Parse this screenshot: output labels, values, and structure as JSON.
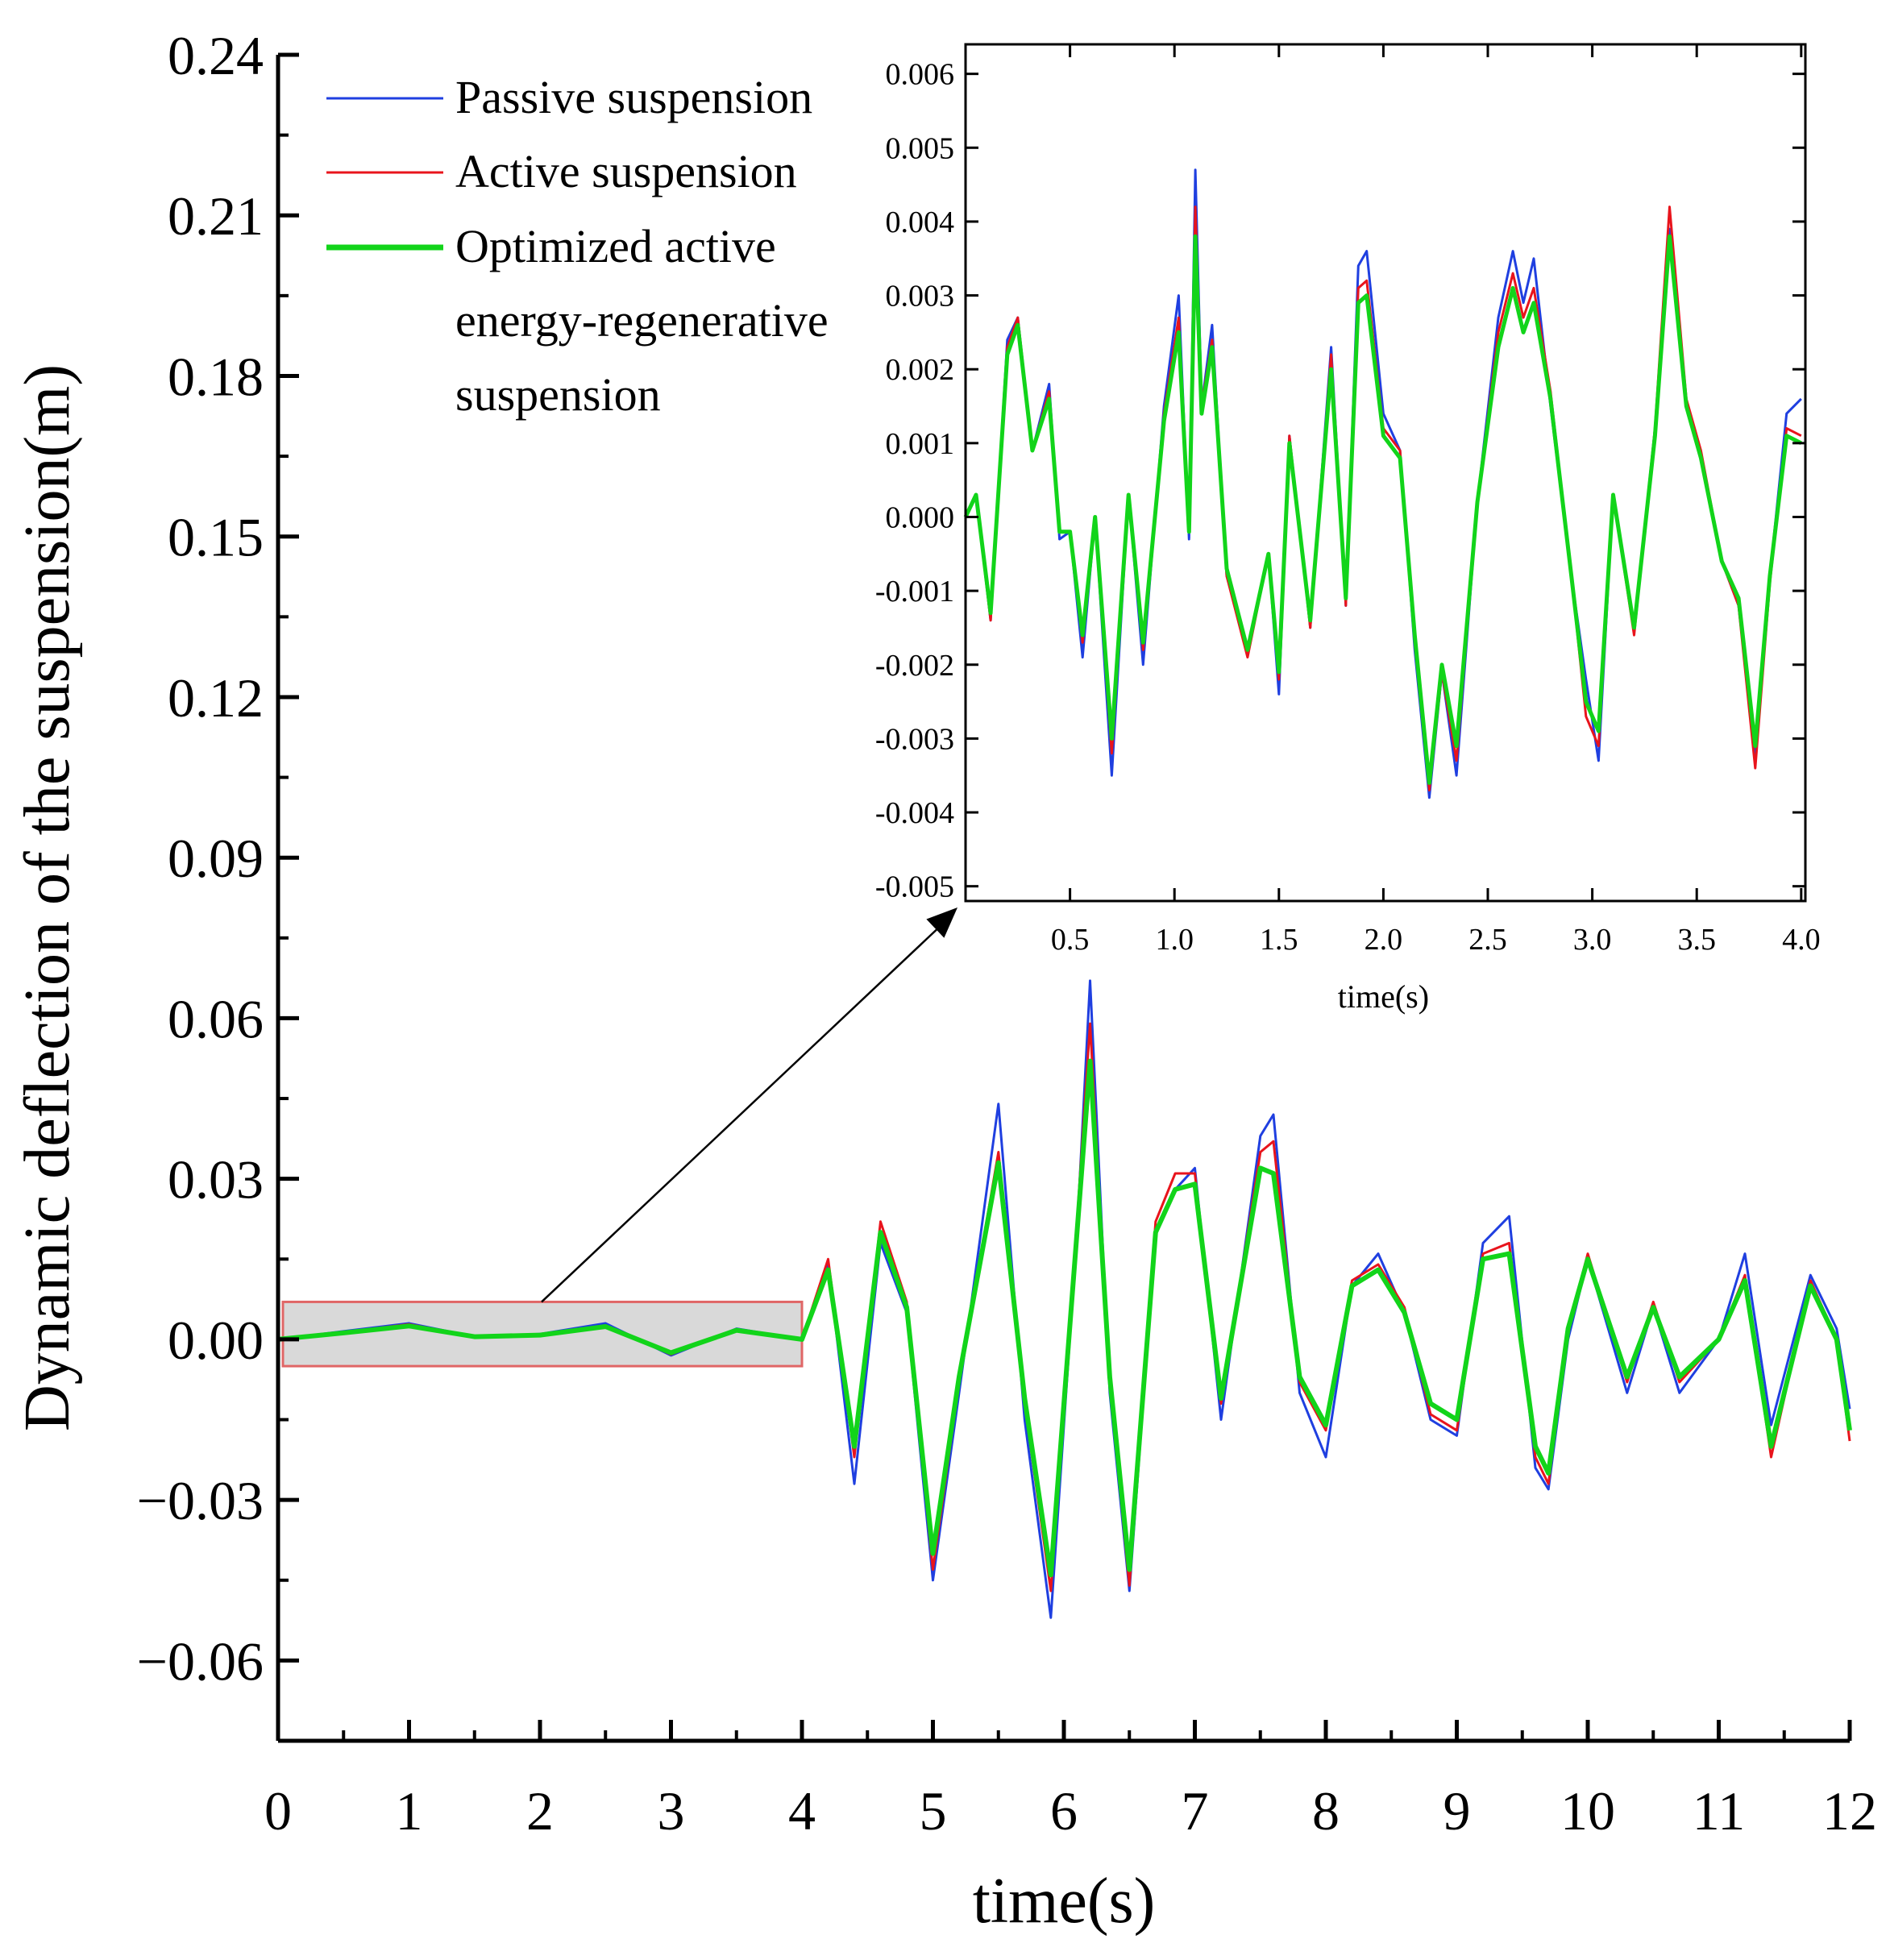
{
  "chart_data": [
    {
      "id": "main",
      "type": "line",
      "title": "",
      "xlabel": "time(s)",
      "ylabel": "Dynamic deflection of the suspension(m)",
      "xlim": [
        0,
        12
      ],
      "ylim": [
        -0.075,
        0.24
      ],
      "xticks": [
        0,
        1,
        2,
        3,
        4,
        5,
        6,
        7,
        8,
        9,
        10,
        11,
        12
      ],
      "xtick_labels": [
        "0",
        "1",
        "2",
        "3",
        "4",
        "5",
        "6",
        "7",
        "8",
        "9",
        "10",
        "11",
        "12"
      ],
      "yticks": [
        -0.06,
        -0.03,
        0.0,
        0.03,
        0.06,
        0.09,
        0.12,
        0.15,
        0.18,
        0.21,
        0.24
      ],
      "ytick_labels": [
        "−0.06",
        "−0.03",
        "0.00",
        "0.03",
        "0.06",
        "0.09",
        "0.12",
        "0.15",
        "0.18",
        "0.21",
        "0.24"
      ],
      "grid": false,
      "legend_position": "top-left",
      "highlight_region": {
        "x": [
          0,
          4
        ],
        "y": [
          -0.005,
          0.007
        ],
        "color": "#d9d9d9",
        "border": "#e06666"
      },
      "series": [
        {
          "name": "Passive suspension",
          "color": "#1f3fe0",
          "x": [
            0,
            0.5,
            1,
            1.5,
            2,
            2.5,
            3,
            3.5,
            4,
            4.2,
            4.4,
            4.6,
            4.8,
            5.0,
            5.2,
            5.5,
            5.7,
            5.9,
            6.1,
            6.2,
            6.35,
            6.5,
            6.7,
            6.85,
            7.0,
            7.2,
            7.5,
            7.6,
            7.8,
            8.0,
            8.2,
            8.4,
            8.6,
            8.8,
            9.0,
            9.2,
            9.4,
            9.6,
            9.7,
            9.85,
            10.0,
            10.3,
            10.5,
            10.7,
            11.0,
            11.2,
            11.4,
            11.7,
            11.9,
            12.0
          ],
          "y": [
            0.0,
            0.0015,
            0.003,
            0.0005,
            0.001,
            0.003,
            -0.003,
            0.002,
            0.0,
            0.014,
            -0.027,
            0.018,
            0.005,
            -0.045,
            -0.01,
            0.044,
            -0.015,
            -0.052,
            0.02,
            0.067,
            -0.01,
            -0.047,
            0.02,
            0.028,
            0.032,
            -0.015,
            0.038,
            0.042,
            -0.01,
            -0.022,
            0.01,
            0.016,
            0.005,
            -0.015,
            -0.018,
            0.018,
            0.023,
            -0.024,
            -0.028,
            0.0,
            0.015,
            -0.01,
            0.006,
            -0.01,
            0.0,
            0.016,
            -0.016,
            0.012,
            0.002,
            -0.013
          ]
        },
        {
          "name": "Active suspension",
          "color": "#e8141c",
          "x": [
            0,
            0.5,
            1,
            1.5,
            2,
            2.5,
            3,
            3.5,
            4,
            4.2,
            4.4,
            4.6,
            4.8,
            5.0,
            5.2,
            5.5,
            5.7,
            5.9,
            6.1,
            6.2,
            6.35,
            6.5,
            6.7,
            6.85,
            7.0,
            7.2,
            7.5,
            7.6,
            7.8,
            8.0,
            8.2,
            8.4,
            8.6,
            8.8,
            9.0,
            9.2,
            9.4,
            9.6,
            9.7,
            9.85,
            10.0,
            10.3,
            10.5,
            10.7,
            11.0,
            11.2,
            11.4,
            11.7,
            11.9,
            12.0
          ],
          "y": [
            0.0,
            0.0013,
            0.0028,
            0.0005,
            0.0009,
            0.0026,
            -0.0028,
            0.0019,
            0.0,
            0.015,
            -0.022,
            0.022,
            0.007,
            -0.043,
            -0.008,
            0.035,
            -0.012,
            -0.047,
            0.022,
            0.059,
            -0.008,
            -0.046,
            0.022,
            0.031,
            0.031,
            -0.012,
            0.035,
            0.037,
            -0.008,
            -0.017,
            0.011,
            0.014,
            0.006,
            -0.014,
            -0.017,
            0.016,
            0.018,
            -0.022,
            -0.027,
            0.002,
            0.016,
            -0.008,
            0.007,
            -0.008,
            0.0,
            0.012,
            -0.022,
            0.011,
            0.0,
            -0.019
          ]
        },
        {
          "name": "Optimized active energy-regenerative suspension",
          "color": "#12d41a",
          "x": [
            0,
            0.5,
            1,
            1.5,
            2,
            2.5,
            3,
            3.5,
            4,
            4.2,
            4.4,
            4.6,
            4.8,
            5.0,
            5.2,
            5.5,
            5.7,
            5.9,
            6.1,
            6.2,
            6.35,
            6.5,
            6.7,
            6.85,
            7.0,
            7.2,
            7.5,
            7.6,
            7.8,
            8.0,
            8.2,
            8.4,
            8.6,
            8.8,
            9.0,
            9.2,
            9.4,
            9.6,
            9.7,
            9.85,
            10.0,
            10.3,
            10.5,
            10.7,
            11.0,
            11.2,
            11.4,
            11.7,
            11.9,
            12.0
          ],
          "y": [
            0.0,
            0.0012,
            0.0025,
            0.0005,
            0.0008,
            0.0024,
            -0.0025,
            0.0017,
            0.0,
            0.013,
            -0.02,
            0.02,
            0.006,
            -0.04,
            -0.007,
            0.033,
            -0.011,
            -0.044,
            0.02,
            0.052,
            -0.007,
            -0.043,
            0.02,
            0.028,
            0.029,
            -0.011,
            0.032,
            0.031,
            -0.007,
            -0.016,
            0.01,
            0.013,
            0.005,
            -0.012,
            -0.015,
            0.015,
            0.016,
            -0.02,
            -0.025,
            0.002,
            0.015,
            -0.007,
            0.006,
            -0.007,
            0.0,
            0.011,
            -0.02,
            0.01,
            0.0,
            -0.017
          ]
        }
      ]
    },
    {
      "id": "inset",
      "type": "line",
      "title": "",
      "xlabel": "time(s)",
      "ylabel": "",
      "xlim": [
        0,
        4.02
      ],
      "ylim": [
        -0.0052,
        0.0064
      ],
      "xticks": [
        0.5,
        1.0,
        1.5,
        2.0,
        2.5,
        3.0,
        3.5,
        4.0
      ],
      "xtick_labels": [
        "0.5",
        "1.0",
        "1.5",
        "2.0",
        "2.5",
        "3.0",
        "3.5",
        "4.0"
      ],
      "yticks": [
        -0.005,
        -0.004,
        -0.003,
        -0.002,
        -0.001,
        0.0,
        0.001,
        0.002,
        0.003,
        0.004,
        0.005,
        0.006
      ],
      "ytick_labels": [
        "-0.005",
        "-0.004",
        "-0.003",
        "-0.002",
        "-0.001",
        "0.000",
        "0.001",
        "0.002",
        "0.003",
        "0.004",
        "0.005",
        "0.006"
      ],
      "grid": false,
      "series": [
        {
          "name": "Passive suspension",
          "color": "#1f3fe0",
          "x": [
            0.0,
            0.05,
            0.12,
            0.2,
            0.25,
            0.32,
            0.4,
            0.45,
            0.5,
            0.56,
            0.62,
            0.7,
            0.78,
            0.85,
            0.95,
            1.02,
            1.07,
            1.1,
            1.13,
            1.18,
            1.25,
            1.35,
            1.45,
            1.5,
            1.55,
            1.65,
            1.75,
            1.82,
            1.88,
            1.92,
            2.0,
            2.08,
            2.15,
            2.22,
            2.28,
            2.35,
            2.45,
            2.55,
            2.62,
            2.67,
            2.72,
            2.8,
            2.9,
            2.97,
            3.03,
            3.1,
            3.2,
            3.3,
            3.37,
            3.45,
            3.52,
            3.62,
            3.7,
            3.78,
            3.85,
            3.93,
            4.0
          ],
          "y": [
            0.0,
            0.0003,
            -0.0014,
            0.0024,
            0.0027,
            0.0009,
            0.0018,
            -0.0003,
            -0.0002,
            -0.0019,
            0.0,
            -0.0035,
            0.0003,
            -0.002,
            0.0015,
            0.003,
            -0.0003,
            0.0047,
            0.0015,
            0.0026,
            -0.0008,
            -0.0018,
            -0.0005,
            -0.0024,
            0.0011,
            -0.0015,
            0.0023,
            -0.0012,
            0.0034,
            0.0036,
            0.0014,
            0.0009,
            -0.0018,
            -0.0038,
            -0.0021,
            -0.0035,
            0.0002,
            0.0027,
            0.0036,
            0.0029,
            0.0035,
            0.0015,
            -0.0008,
            -0.0022,
            -0.0033,
            0.0003,
            -0.0015,
            0.0012,
            0.0039,
            0.0015,
            0.0008,
            -0.0006,
            -0.0012,
            -0.0032,
            -0.0008,
            0.0014,
            0.0016
          ]
        },
        {
          "name": "Active suspension",
          "color": "#e8141c",
          "x": [
            0.0,
            0.05,
            0.12,
            0.2,
            0.25,
            0.32,
            0.4,
            0.45,
            0.5,
            0.56,
            0.62,
            0.7,
            0.78,
            0.85,
            0.95,
            1.02,
            1.07,
            1.1,
            1.13,
            1.18,
            1.25,
            1.35,
            1.45,
            1.5,
            1.55,
            1.65,
            1.75,
            1.82,
            1.88,
            1.92,
            2.0,
            2.08,
            2.15,
            2.22,
            2.28,
            2.35,
            2.45,
            2.55,
            2.62,
            2.67,
            2.72,
            2.8,
            2.9,
            2.97,
            3.03,
            3.1,
            3.2,
            3.3,
            3.37,
            3.45,
            3.52,
            3.62,
            3.7,
            3.78,
            3.85,
            3.93,
            4.0
          ],
          "y": [
            0.0,
            0.0003,
            -0.0014,
            0.0023,
            0.0027,
            0.0009,
            0.0017,
            -0.0002,
            -0.0002,
            -0.0017,
            0.0,
            -0.0032,
            0.0003,
            -0.0018,
            0.0014,
            0.0027,
            -0.0002,
            0.0042,
            0.0015,
            0.0024,
            -0.0008,
            -0.0019,
            -0.0005,
            -0.0022,
            0.0011,
            -0.0015,
            0.0022,
            -0.0012,
            0.0031,
            0.0032,
            0.0012,
            0.0009,
            -0.0017,
            -0.0037,
            -0.0021,
            -0.0033,
            0.0002,
            0.0025,
            0.0033,
            0.0027,
            0.0031,
            0.0017,
            -0.0008,
            -0.0027,
            -0.0031,
            0.0003,
            -0.0016,
            0.0012,
            0.0042,
            0.0016,
            0.0009,
            -0.0006,
            -0.0012,
            -0.0034,
            -0.0009,
            0.0012,
            0.0011
          ]
        },
        {
          "name": "Optimized active energy-regenerative suspension",
          "color": "#12d41a",
          "x": [
            0.0,
            0.05,
            0.12,
            0.2,
            0.25,
            0.32,
            0.4,
            0.45,
            0.5,
            0.56,
            0.62,
            0.7,
            0.78,
            0.85,
            0.95,
            1.02,
            1.07,
            1.1,
            1.13,
            1.18,
            1.25,
            1.35,
            1.45,
            1.5,
            1.55,
            1.65,
            1.75,
            1.82,
            1.88,
            1.92,
            2.0,
            2.08,
            2.15,
            2.22,
            2.28,
            2.35,
            2.45,
            2.55,
            2.62,
            2.67,
            2.72,
            2.8,
            2.9,
            2.97,
            3.03,
            3.1,
            3.2,
            3.3,
            3.37,
            3.45,
            3.52,
            3.62,
            3.7,
            3.78,
            3.85,
            3.93,
            4.0
          ],
          "y": [
            0.0,
            0.0003,
            -0.0013,
            0.0022,
            0.0026,
            0.0009,
            0.0016,
            -0.0002,
            -0.0002,
            -0.0016,
            0.0,
            -0.003,
            0.0003,
            -0.0017,
            0.0013,
            0.0025,
            -0.0002,
            0.0038,
            0.0014,
            0.0023,
            -0.0007,
            -0.0018,
            -0.0005,
            -0.0021,
            0.001,
            -0.0014,
            0.002,
            -0.0011,
            0.0029,
            0.003,
            0.0011,
            0.0008,
            -0.0016,
            -0.0036,
            -0.002,
            -0.0031,
            0.0002,
            0.0023,
            0.0031,
            0.0025,
            0.0029,
            0.0016,
            -0.0008,
            -0.0025,
            -0.0029,
            0.0003,
            -0.0015,
            0.0011,
            0.0038,
            0.0015,
            0.0008,
            -0.0006,
            -0.0011,
            -0.0031,
            -0.0008,
            0.0011,
            0.001
          ]
        }
      ]
    }
  ]
}
